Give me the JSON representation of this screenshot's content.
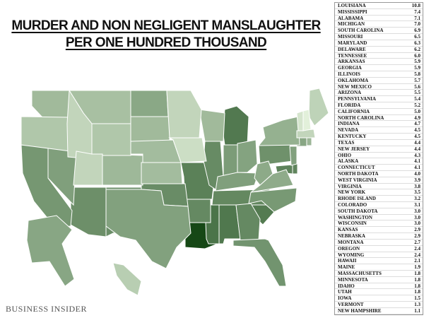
{
  "title": [
    "MURDER AND NON NEGLIGENT MANSLAUGHTER",
    "PER ONE HUNDRED THOUSAND"
  ],
  "source": "BUSINESS INSIDER",
  "table": {
    "rows": [
      [
        "LOUISIANA",
        "10.8"
      ],
      [
        "MISSISSIPPI",
        "7.4"
      ],
      [
        "ALABAMA",
        "7.1"
      ],
      [
        "MICHIGAN",
        "7.0"
      ],
      [
        "SOUTH CAROLINA",
        "6.9"
      ],
      [
        "MISSOURI",
        "6.5"
      ],
      [
        "MARYLAND",
        "6.3"
      ],
      [
        "DELAWARE",
        "6.2"
      ],
      [
        "TENNESSEE",
        "6.0"
      ],
      [
        "ARKANSAS",
        "5.9"
      ],
      [
        "GEORGIA",
        "5.9"
      ],
      [
        "ILLINOIS",
        "5.8"
      ],
      [
        "OKLAHOMA",
        "5.7"
      ],
      [
        "NEW MEXICO",
        "5.6"
      ],
      [
        "ARIZONA",
        "5.5"
      ],
      [
        "PENNSYLVANIA",
        "5.4"
      ],
      [
        "FLORIDA",
        "5.2"
      ],
      [
        "CALIFORNIA",
        "5.0"
      ],
      [
        "NORTH CAROLINA",
        "4.9"
      ],
      [
        "INDIANA",
        "4.7"
      ],
      [
        "NEVADA",
        "4.5"
      ],
      [
        "KENTUCKY",
        "4.5"
      ],
      [
        "TEXAS",
        "4.4"
      ],
      [
        "NEW JERSEY",
        "4.4"
      ],
      [
        "OHIO",
        "4.3"
      ],
      [
        "ALASKA",
        "4.1"
      ],
      [
        "CONNECTICUT",
        "4.1"
      ],
      [
        "NORTH DAKOTA",
        "4.0"
      ],
      [
        "WEST VIRGINIA",
        "3.9"
      ],
      [
        "VIRGINIA",
        "3.8"
      ],
      [
        "NEW YORK",
        "3.5"
      ],
      [
        "RHODE ISLAND",
        "3.2"
      ],
      [
        "COLORADO",
        "3.1"
      ],
      [
        "SOUTH DAKOTA",
        "3.0"
      ],
      [
        "WASHINGTON",
        "3.0"
      ],
      [
        "WISCONSIN",
        "3.0"
      ],
      [
        "KANSAS",
        "2.9"
      ],
      [
        "NEBRASKA",
        "2.9"
      ],
      [
        "MONTANA",
        "2.7"
      ],
      [
        "OREGON",
        "2.4"
      ],
      [
        "WYOMING",
        "2.4"
      ],
      [
        "HAWAII",
        "2.1"
      ],
      [
        "MAINE",
        "1.9"
      ],
      [
        "MASSACHUSETTS",
        "1.8"
      ],
      [
        "MINNESOTA",
        "1.8"
      ],
      [
        "IDAHO",
        "1.8"
      ],
      [
        "UTAH",
        "1.8"
      ],
      [
        "IOWA",
        "1.5"
      ],
      [
        "VERMONT",
        "1.3"
      ],
      [
        "NEW HAMPSHIRE",
        "1.1"
      ]
    ]
  }
}
